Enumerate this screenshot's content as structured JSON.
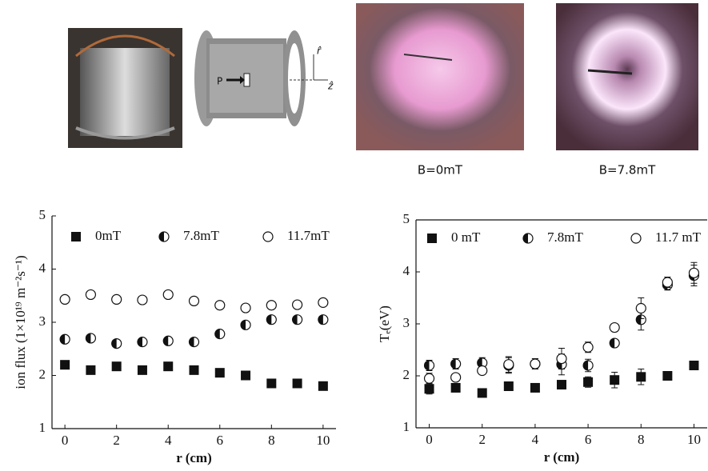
{
  "figure": {
    "diagram_labels": [
      "P",
      "r̂",
      "ẑ"
    ],
    "captions": [
      "B=0mT",
      "B=7.8mT"
    ]
  },
  "chart_data": [
    {
      "type": "scatter",
      "xlabel": "r (cm)",
      "ylabel": "ion flux (1×10¹⁹ m⁻²s⁻¹)",
      "x": [
        0,
        1,
        2,
        3,
        4,
        5,
        6,
        7,
        8,
        9,
        10
      ],
      "xlim": [
        -0.5,
        10.5
      ],
      "xticks": [
        0,
        2,
        4,
        6,
        8,
        10
      ],
      "ylim": [
        1,
        5
      ],
      "yticks": [
        1,
        2,
        3,
        4,
        5
      ],
      "box_top": false,
      "series": [
        {
          "name": "0mT",
          "marker": "square",
          "color": "#111111",
          "values": [
            2.2,
            2.1,
            2.17,
            2.1,
            2.17,
            2.1,
            2.05,
            2.0,
            1.85,
            1.85,
            1.8
          ]
        },
        {
          "name": "7.8mT",
          "marker": "half-circle",
          "color": "#111111",
          "values": [
            2.68,
            2.7,
            2.6,
            2.63,
            2.65,
            2.63,
            2.78,
            2.95,
            3.05,
            3.05,
            3.05
          ]
        },
        {
          "name": "11.7mT",
          "marker": "open-circle",
          "color": "#111111",
          "values": [
            3.43,
            3.52,
            3.43,
            3.42,
            3.52,
            3.4,
            3.32,
            3.27,
            3.32,
            3.33,
            3.37
          ]
        }
      ]
    },
    {
      "type": "scatter",
      "xlabel": "r (cm)",
      "ylabel": "Tₑ(eV)",
      "x": [
        0,
        1,
        2,
        3,
        4,
        5,
        6,
        7,
        8,
        9,
        10
      ],
      "xlim": [
        -0.5,
        10.5
      ],
      "xticks": [
        0,
        2,
        4,
        6,
        8,
        10
      ],
      "ylim": [
        1,
        5
      ],
      "yticks": [
        1,
        2,
        3,
        4,
        5
      ],
      "box_top": true,
      "series": [
        {
          "name": "0 mT",
          "marker": "square",
          "color": "#111111",
          "values": [
            1.75,
            1.77,
            1.67,
            1.8,
            1.77,
            1.83,
            1.88,
            1.92,
            1.98,
            2.0,
            2.2
          ],
          "errors": [
            0.1,
            0.05,
            0.05,
            0.07,
            0.07,
            0.07,
            0.1,
            0.15,
            0.15,
            0.07,
            0.05
          ]
        },
        {
          "name": "7.8mT",
          "marker": "half-circle",
          "color": "#111111",
          "values": [
            2.2,
            2.23,
            2.25,
            2.2,
            2.23,
            2.22,
            2.2,
            2.63,
            3.08,
            3.75,
            3.93
          ],
          "errors": [
            0.1,
            0.1,
            0.1,
            0.15,
            0.1,
            0.2,
            0.12,
            0.05,
            0.2,
            0.1,
            0.2
          ]
        },
        {
          "name": "11.7 mT",
          "marker": "open-circle",
          "color": "#111111",
          "values": [
            1.95,
            1.97,
            2.1,
            2.22,
            2.23,
            2.33,
            2.55,
            2.93,
            3.3,
            3.8,
            3.98
          ],
          "errors": [
            0.1,
            0.05,
            0.05,
            0.15,
            0.1,
            0.2,
            0.1,
            0.07,
            0.2,
            0.1,
            0.2
          ]
        }
      ]
    }
  ]
}
